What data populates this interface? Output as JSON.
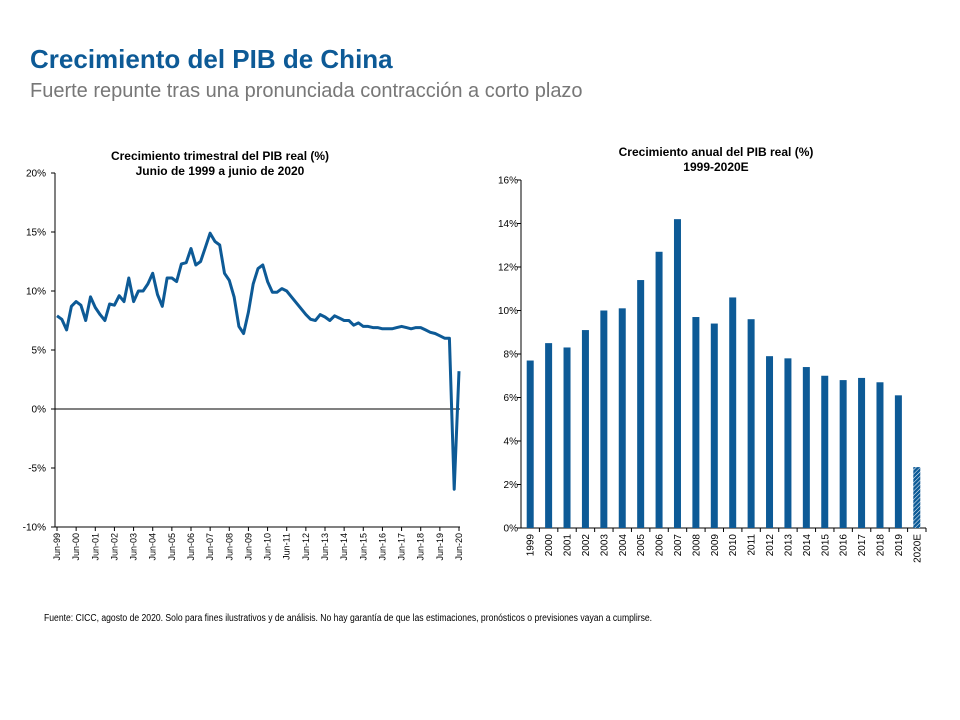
{
  "title": "Crecimiento del PIB de China",
  "subtitle": "Fuerte repunte tras una pronunciada contracción a corto plazo",
  "footnote": "Fuente: CICC, agosto de 2020. Solo para fines ilustrativos y de análisis. No hay garantía de que las estimaciones, pronósticos o previsiones vayan a cumplirse.",
  "colors": {
    "brand": "#0d5a96",
    "series": "#0d5a96"
  },
  "chart_data": [
    {
      "type": "line",
      "title": "Crecimiento trimestral del PIB real (%)",
      "subtitle": "Junio de 1999 a junio de 2020",
      "ylim": [
        -10,
        20
      ],
      "yticks": [
        "-10%",
        "-5%",
        "0%",
        "5%",
        "10%",
        "15%",
        "20%"
      ],
      "ytick_values": [
        -10,
        -5,
        0,
        5,
        10,
        15,
        20
      ],
      "xtick_labels": [
        "Jun-99",
        "Jun-00",
        "Jun-01",
        "Jun-02",
        "Jun-03",
        "Jun-04",
        "Jun-05",
        "Jun-06",
        "Jun-07",
        "Jun-08",
        "Jun-09",
        "Jun-10",
        "Jun-11",
        "Jun-12",
        "Jun-13",
        "Jun-14",
        "Jun-15",
        "Jun-16",
        "Jun-17",
        "Jun-18",
        "Jun-19",
        "Jun-20"
      ],
      "x_quarters_count": 85,
      "values": [
        7.9,
        7.6,
        6.7,
        8.7,
        9.1,
        8.8,
        7.5,
        9.5,
        8.6,
        8.0,
        7.5,
        8.9,
        8.8,
        9.6,
        9.1,
        11.1,
        9.1,
        10.0,
        10.0,
        10.6,
        11.5,
        9.7,
        8.7,
        11.1,
        11.1,
        10.8,
        12.3,
        12.4,
        13.6,
        12.2,
        12.5,
        13.7,
        14.9,
        14.2,
        13.9,
        11.5,
        10.9,
        9.5,
        7.0,
        6.4,
        8.2,
        10.6,
        11.9,
        12.2,
        10.8,
        9.9,
        9.9,
        10.2,
        10.0,
        9.5,
        9.0,
        8.5,
        8.0,
        7.6,
        7.5,
        8.0,
        7.8,
        7.5,
        7.9,
        7.7,
        7.5,
        7.5,
        7.1,
        7.3,
        7.0,
        7.0,
        6.9,
        6.9,
        6.8,
        6.8,
        6.8,
        6.9,
        7.0,
        6.9,
        6.8,
        6.9,
        6.9,
        6.7,
        6.5,
        6.4,
        6.2,
        6.0,
        6.0,
        -6.8,
        3.2
      ],
      "grid": false,
      "zero_line": true
    },
    {
      "type": "bar",
      "title": "Crecimiento anual del PIB real (%)",
      "subtitle": "1999-2020E",
      "ylim": [
        0,
        16
      ],
      "yticks": [
        "0%",
        "2%",
        "4%",
        "6%",
        "8%",
        "10%",
        "12%",
        "14%",
        "16%"
      ],
      "ytick_values": [
        0,
        2,
        4,
        6,
        8,
        10,
        12,
        14,
        16
      ],
      "categories": [
        "1999",
        "2000",
        "2001",
        "2002",
        "2003",
        "2004",
        "2005",
        "2006",
        "2007",
        "2008",
        "2009",
        "2010",
        "2011",
        "2012",
        "2013",
        "2014",
        "2015",
        "2016",
        "2017",
        "2018",
        "2019",
        "2020E"
      ],
      "values": [
        7.7,
        8.5,
        8.3,
        9.1,
        10.0,
        10.1,
        11.4,
        12.7,
        14.2,
        9.7,
        9.4,
        10.6,
        9.6,
        7.9,
        7.8,
        7.4,
        7.0,
        6.8,
        6.9,
        6.7,
        6.1,
        2.8
      ],
      "estimate_category": "2020E",
      "grid": false
    }
  ]
}
